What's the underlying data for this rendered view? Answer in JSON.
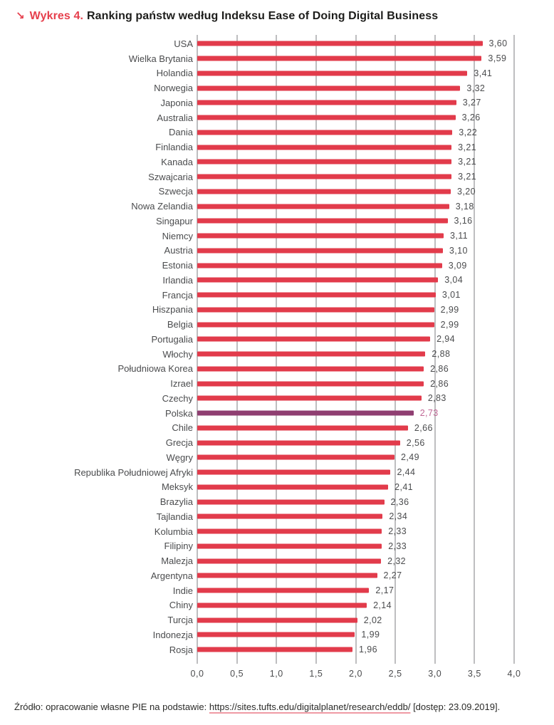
{
  "header": {
    "arrow": "↘",
    "label": "Wykres 4.",
    "title": "Ranking państw według Indeksu Ease of Doing Digital Business"
  },
  "chart_data": {
    "type": "bar",
    "orientation": "horizontal",
    "title": "Ranking państw według Indeksu Ease of Doing Digital Business",
    "categories": [
      "USA",
      "Wielka Brytania",
      "Holandia",
      "Norwegia",
      "Japonia",
      "Australia",
      "Dania",
      "Finlandia",
      "Kanada",
      "Szwajcaria",
      "Szwecja",
      "Nowa Zelandia",
      "Singapur",
      "Niemcy",
      "Austria",
      "Estonia",
      "Irlandia",
      "Francja",
      "Hiszpania",
      "Belgia",
      "Portugalia",
      "Włochy",
      "Południowa Korea",
      "Izrael",
      "Czechy",
      "Polska",
      "Chile",
      "Grecja",
      "Węgry",
      "Republika Południowej Afryki",
      "Meksyk",
      "Brazylia",
      "Tajlandia",
      "Kolumbia",
      "Filipiny",
      "Malezja",
      "Argentyna",
      "Indie",
      "Chiny",
      "Turcja",
      "Indonezja",
      "Rosja"
    ],
    "values": [
      3.6,
      3.59,
      3.41,
      3.32,
      3.27,
      3.26,
      3.22,
      3.21,
      3.21,
      3.21,
      3.2,
      3.18,
      3.16,
      3.11,
      3.1,
      3.09,
      3.04,
      3.01,
      2.99,
      2.99,
      2.94,
      2.88,
      2.86,
      2.86,
      2.83,
      2.73,
      2.66,
      2.56,
      2.49,
      2.44,
      2.41,
      2.36,
      2.34,
      2.33,
      2.33,
      2.32,
      2.27,
      2.17,
      2.14,
      2.02,
      1.99,
      1.96
    ],
    "highlight_category": "Polska",
    "highlight_index": 25,
    "xlim": [
      0,
      4
    ],
    "x_ticks": [
      "0,0",
      "0,5",
      "1,0",
      "1,5",
      "2,0",
      "2,5",
      "3,0",
      "3,5",
      "4,0"
    ],
    "grid": true,
    "legend": false,
    "decimal_separator": ",",
    "colors": {
      "bar": "#e23b4b",
      "highlight_bar": "#8f3e71",
      "highlight_value": "#c06795",
      "gridline": "#7d7e81",
      "label": "#4b4c4e",
      "accent": "#e6404d"
    }
  },
  "footer": {
    "prefix": "Źródło: opracowanie własne PIE na podstawie: ",
    "link": "https://sites.tufts.edu/digitalplanet/research/eddb/",
    "suffix": " [dostęp: 23.09.2019]."
  }
}
